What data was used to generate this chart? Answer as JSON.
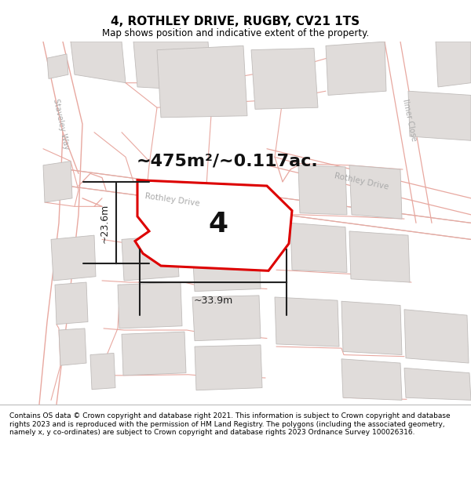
{
  "title": "4, ROTHLEY DRIVE, RUGBY, CV21 1TS",
  "subtitle": "Map shows position and indicative extent of the property.",
  "area_text": "~475m²/~0.117ac.",
  "label_number": "4",
  "dim_width": "~33.9m",
  "dim_height": "~23.6m",
  "footer": "Contains OS data © Crown copyright and database right 2021. This information is subject to Crown copyright and database rights 2023 and is reproduced with the permission of HM Land Registry. The polygons (including the associated geometry, namely x, y co-ordinates) are subject to Crown copyright and database rights 2023 Ordnance Survey 100026316.",
  "map_bg": "#f5f3f1",
  "building_color": "#e0dcda",
  "building_outline": "#c0bcba",
  "road_fill": "#ffffff",
  "road_outline": "#c8c0bc",
  "pink_line": "#e8a8a0",
  "red_line_color": "#dd0000",
  "dim_line_color": "#202020",
  "street_label_color": "#aaaaaa",
  "title_color": "#000000",
  "footer_color": "#000000",
  "title_fontsize": 11,
  "subtitle_fontsize": 8.5,
  "area_fontsize": 16,
  "number_fontsize": 26,
  "street_fontsize": 7.5,
  "footer_fontsize": 6.5
}
